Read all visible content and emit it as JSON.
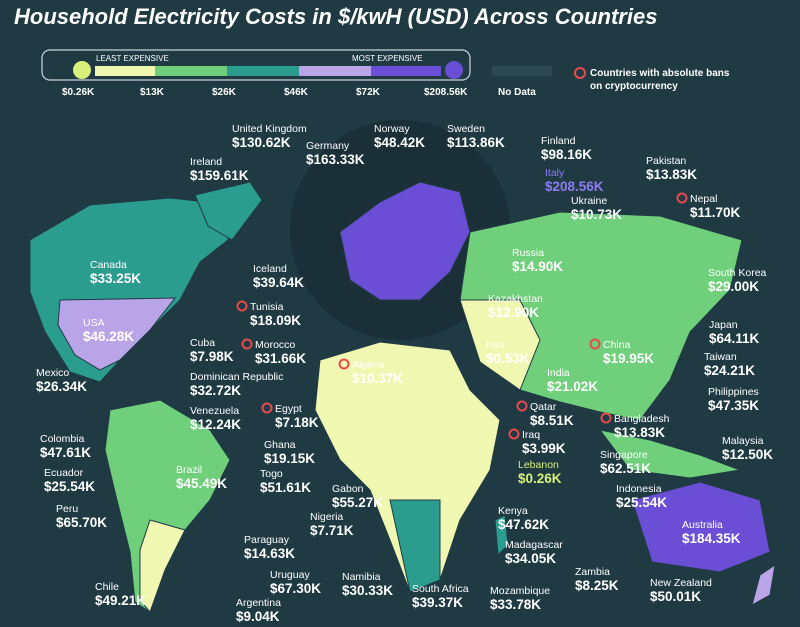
{
  "title": "Household Electricity Costs in $/kwH (USD) Across Countries",
  "legend": {
    "low_label": "LEAST EXPENSIVE",
    "high_label": "MOST EXPENSIVE",
    "ticks": [
      "$0.26K",
      "$13K",
      "$26K",
      "$46K",
      "$72K",
      "$208.56K"
    ],
    "no_data": "No Data",
    "ban_note": [
      "Countries with absolute bans",
      "on cryptocurrency"
    ]
  },
  "countries": [
    {
      "name": "United Kingdom",
      "value": "$130.62K"
    },
    {
      "name": "Germany",
      "value": "$163.33K"
    },
    {
      "name": "Norway",
      "value": "$48.42K"
    },
    {
      "name": "Sweden",
      "value": "$113.86K"
    },
    {
      "name": "Finland",
      "value": "$98.16K"
    },
    {
      "name": "Ireland",
      "value": "$159.61K"
    },
    {
      "name": "Pakistan",
      "value": "$13.83K"
    },
    {
      "name": "Italy",
      "value": "$208.56K",
      "color": "#8f7cf0"
    },
    {
      "name": "Nepal",
      "value": "$11.70K",
      "ban": true
    },
    {
      "name": "Ukraine",
      "value": "$10.73K"
    },
    {
      "name": "Canada",
      "value": "$33.25K"
    },
    {
      "name": "Iceland",
      "value": "$39.64K"
    },
    {
      "name": "Russia",
      "value": "$14.90K"
    },
    {
      "name": "South Korea",
      "value": "$29.00K"
    },
    {
      "name": "Tunisia",
      "value": "$18.09K",
      "ban": true
    },
    {
      "name": "Kazakhstan",
      "value": "$12.90K"
    },
    {
      "name": "USA",
      "value": "$46.28K"
    },
    {
      "name": "Japan",
      "value": "$64.11K"
    },
    {
      "name": "Cuba",
      "value": "$7.98K"
    },
    {
      "name": "Morocco",
      "value": "$31.66K",
      "ban": true
    },
    {
      "name": "Iran",
      "value": "$0.53K"
    },
    {
      "name": "China",
      "value": "$19.95K",
      "ban": true
    },
    {
      "name": "Taiwan",
      "value": "$24.21K"
    },
    {
      "name": "Mexico",
      "value": "$26.34K"
    },
    {
      "name": "Algeria",
      "value": "$10.37K",
      "ban": true
    },
    {
      "name": "Dominican Republic",
      "value": "$32.72K"
    },
    {
      "name": "India",
      "value": "$21.02K"
    },
    {
      "name": "Philippines",
      "value": "$47.35K"
    },
    {
      "name": "Venezuela",
      "value": "$12.24K"
    },
    {
      "name": "Egypt",
      "value": "$7.18K",
      "ban": true
    },
    {
      "name": "Qatar",
      "value": "$8.51K",
      "ban": true
    },
    {
      "name": "Bangladesh",
      "value": "$13.83K",
      "ban": true
    },
    {
      "name": "Colombia",
      "value": "$47.61K"
    },
    {
      "name": "Iraq",
      "value": "$3.99K",
      "ban": true
    },
    {
      "name": "Malaysia",
      "value": "$12.50K"
    },
    {
      "name": "Ghana",
      "value": "$19.15K"
    },
    {
      "name": "Singapore",
      "value": "$62.51K"
    },
    {
      "name": "Ecuador",
      "value": "$25.54K"
    },
    {
      "name": "Lebanon",
      "value": "$0.26K",
      "color": "#d9f07a"
    },
    {
      "name": "Brazil",
      "value": "$45.49K"
    },
    {
      "name": "Togo",
      "value": "$51.61K"
    },
    {
      "name": "Gabon",
      "value": "$55.27K"
    },
    {
      "name": "Indonesia",
      "value": "$25.54K"
    },
    {
      "name": "Peru",
      "value": "$65.70K"
    },
    {
      "name": "Kenya",
      "value": "$47.62K"
    },
    {
      "name": "Nigeria",
      "value": "$7.71K"
    },
    {
      "name": "Australia",
      "value": "$184.35K"
    },
    {
      "name": "Paraguay",
      "value": "$14.63K"
    },
    {
      "name": "Madagascar",
      "value": "$34.05K"
    },
    {
      "name": "Zambia",
      "value": "$8.25K"
    },
    {
      "name": "Uruguay",
      "value": "$67.30K"
    },
    {
      "name": "Namibia",
      "value": "$30.33K"
    },
    {
      "name": "South Africa",
      "value": "$39.37K"
    },
    {
      "name": "Mozambique",
      "value": "$33.78K"
    },
    {
      "name": "Chile",
      "value": "$49.21K"
    },
    {
      "name": "New Zealand",
      "value": "$50.01K"
    },
    {
      "name": "Argentina",
      "value": "$9.04K"
    }
  ]
}
